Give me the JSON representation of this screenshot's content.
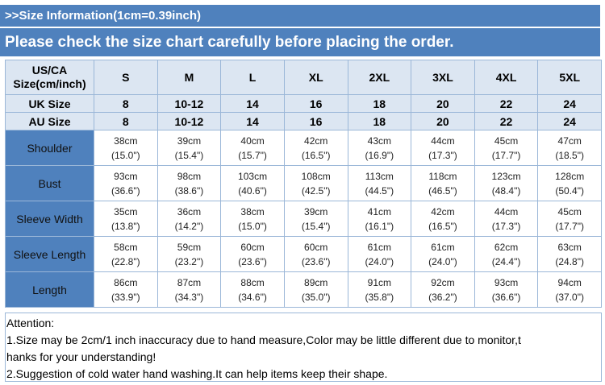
{
  "banner": {
    "info": ">>Size Information(1cm=0.39inch)",
    "notice": "Please check the size chart carefully before placing the order."
  },
  "table": {
    "header_label_line1": "US/CA",
    "header_label_line2": "Size(cm/inch)",
    "sizes": [
      "S",
      "M",
      "L",
      "XL",
      "2XL",
      "3XL",
      "4XL",
      "5XL"
    ],
    "uk_label": "UK Size",
    "uk": [
      "8",
      "10-12",
      "14",
      "16",
      "18",
      "20",
      "22",
      "24"
    ],
    "au_label": "AU Size",
    "au": [
      "8",
      "10-12",
      "14",
      "16",
      "18",
      "20",
      "22",
      "24"
    ],
    "rows": [
      {
        "label": "Shoulder",
        "cm": [
          "38cm",
          "39cm",
          "40cm",
          "42cm",
          "43cm",
          "44cm",
          "45cm",
          "47cm"
        ],
        "inch": [
          "(15.0\")",
          "(15.4\")",
          "(15.7\")",
          "(16.5\")",
          "(16.9\")",
          "(17.3\")",
          "(17.7\")",
          "(18.5\")"
        ]
      },
      {
        "label": "Bust",
        "cm": [
          "93cm",
          "98cm",
          "103cm",
          "108cm",
          "113cm",
          "118cm",
          "123cm",
          "128cm"
        ],
        "inch": [
          "(36.6\")",
          "(38.6\")",
          "(40.6\")",
          "(42.5\")",
          "(44.5\")",
          "(46.5\")",
          "(48.4\")",
          "(50.4\")"
        ]
      },
      {
        "label": "Sleeve Width",
        "cm": [
          "35cm",
          "36cm",
          "38cm",
          "39cm",
          "41cm",
          "42cm",
          "44cm",
          "45cm"
        ],
        "inch": [
          "(13.8\")",
          "(14.2\")",
          "(15.0\")",
          "(15.4\")",
          "(16.1\")",
          "(16.5\")",
          "(17.3\")",
          "(17.7\")"
        ]
      },
      {
        "label": "Sleeve Length",
        "cm": [
          "58cm",
          "59cm",
          "60cm",
          "60cm",
          "61cm",
          "61cm",
          "62cm",
          "63cm"
        ],
        "inch": [
          "(22.8\")",
          "(23.2\")",
          "(23.6\")",
          "(23.6\")",
          "(24.0\")",
          "(24.0\")",
          "(24.4\")",
          "(24.8\")"
        ]
      },
      {
        "label": "Length",
        "cm": [
          "86cm",
          "87cm",
          "88cm",
          "89cm",
          "91cm",
          "92cm",
          "93cm",
          "94cm"
        ],
        "inch": [
          "(33.9\")",
          "(34.3\")",
          "(34.6\")",
          "(35.0\")",
          "(35.8\")",
          "(36.2\")",
          "(36.6\")",
          "(37.0\")"
        ]
      }
    ]
  },
  "attention": {
    "title": "Attention:",
    "line1": "1.Size may be 2cm/1 inch inaccuracy due to hand measure,Color may be little different due to monitor,t",
    "line2": "hanks for your understanding!",
    "line3": "2.Suggestion of cold water hand washing.It can help items keep their shape."
  },
  "colors": {
    "banner": "#4f81bd",
    "header_fill": "#dce6f2",
    "label_fill": "#4f81bd",
    "border": "#9bb7d8"
  }
}
